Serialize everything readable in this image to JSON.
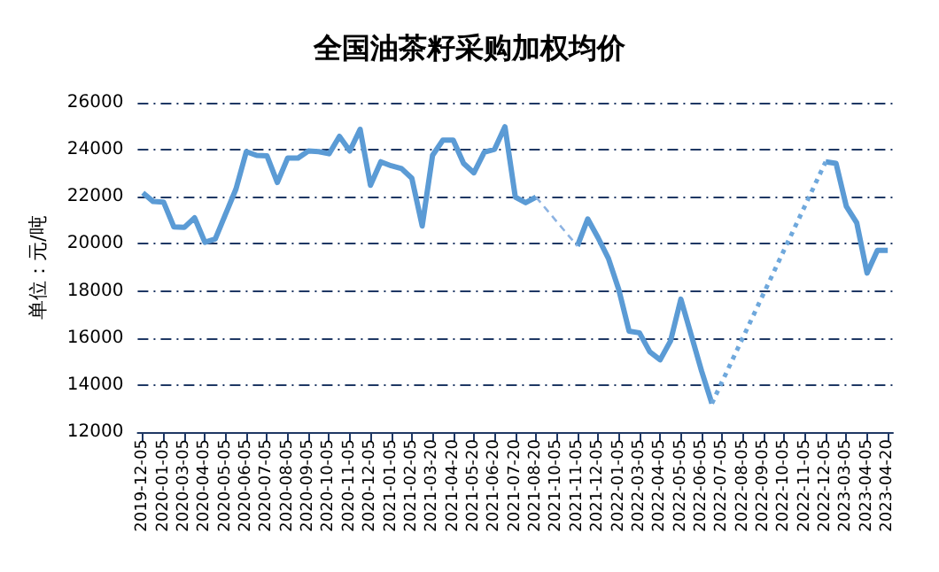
{
  "chart_data": {
    "type": "line",
    "title": "全国油茶籽采购加权均价",
    "ylabel": "单位：元/吨",
    "categories": [
      "2019-12-05",
      null,
      "2020-01-05",
      null,
      "2020-03-05",
      null,
      "2020-04-05",
      null,
      "2020-05-05",
      null,
      "2020-06-05",
      null,
      "2020-07-05",
      null,
      "2020-08-05",
      null,
      "2020-09-05",
      null,
      "2020-10-05",
      null,
      "2020-11-05",
      null,
      "2020-12-05",
      null,
      "2021-01-05",
      null,
      "2021-02-05",
      null,
      "2021-03-20",
      null,
      "2021-04-20",
      null,
      "2021-05-20",
      null,
      "2021-06-20",
      null,
      "2021-07-20",
      null,
      "2021-08-20",
      null,
      "2021-10-05",
      null,
      "2021-11-05",
      null,
      "2021-12-05",
      null,
      "2022-01-05",
      null,
      "2022-03-05",
      null,
      "2022-04-05",
      null,
      "2022-05-05",
      null,
      "2022-06-05",
      null,
      "2022-07-05",
      null,
      "2022-08-05",
      null,
      "2022-09-05",
      null,
      "2022-10-05",
      null,
      "2022-11-05",
      null,
      "2022-12-05",
      null,
      "2023-03-05",
      null,
      "2023-04-05",
      null,
      "2023-04-20"
    ],
    "series": [
      {
        "color": "#5b9bd5",
        "line_style": "solid",
        "values": [
          22170,
          21800,
          21780,
          20720,
          20700,
          21110,
          20070,
          20210,
          21270,
          22330,
          23920,
          23760,
          23740,
          22610,
          23650,
          23650,
          23950,
          23920,
          23830,
          24570,
          23950,
          24870,
          22490,
          23490,
          23320,
          23200,
          22790,
          20760,
          23760,
          24410,
          24410,
          23420,
          23020,
          23900,
          24020,
          24980,
          21990,
          21750,
          21990,
          null,
          null,
          null,
          19910,
          21060,
          20260,
          19380,
          18060,
          16290,
          16220,
          15410,
          15070,
          15870,
          17650,
          16130,
          14600,
          13220,
          null,
          null,
          null,
          null,
          null,
          null,
          null,
          null,
          null,
          null,
          23490,
          23420,
          21590,
          20900,
          18760,
          19720,
          19720
        ]
      },
      {
        "color": "#8db3e2",
        "line_style": "dashed",
        "values": [
          null,
          null,
          null,
          null,
          null,
          null,
          null,
          null,
          null,
          null,
          null,
          null,
          null,
          null,
          null,
          null,
          null,
          null,
          null,
          null,
          null,
          null,
          null,
          null,
          null,
          null,
          null,
          null,
          null,
          null,
          null,
          null,
          null,
          null,
          null,
          null,
          null,
          null,
          21990,
          21470,
          20950,
          20430,
          19910,
          null,
          null,
          null,
          null,
          null,
          null,
          null,
          null,
          null,
          null,
          null,
          null,
          null,
          null,
          null,
          null,
          null,
          null,
          null,
          null,
          null,
          null,
          null,
          null,
          null,
          null,
          null,
          null,
          null,
          null
        ]
      },
      {
        "color": "#6fa8dc",
        "line_style": "dotted",
        "values": [
          null,
          null,
          null,
          null,
          null,
          null,
          null,
          null,
          null,
          null,
          null,
          null,
          null,
          null,
          null,
          null,
          null,
          null,
          null,
          null,
          null,
          null,
          null,
          null,
          null,
          null,
          null,
          null,
          null,
          null,
          null,
          null,
          null,
          null,
          null,
          null,
          null,
          null,
          null,
          null,
          null,
          null,
          null,
          null,
          null,
          null,
          null,
          null,
          null,
          null,
          null,
          null,
          null,
          null,
          null,
          13220,
          14150,
          15090,
          16020,
          16950,
          17890,
          18820,
          19760,
          20690,
          21620,
          22560,
          23490,
          null,
          null,
          null,
          null,
          null,
          null
        ]
      }
    ],
    "ylim": [
      12000,
      26000
    ],
    "yticks": [
      12000,
      14000,
      16000,
      18000,
      20000,
      22000,
      24000,
      26000
    ],
    "grid": "y",
    "marker": "none"
  }
}
